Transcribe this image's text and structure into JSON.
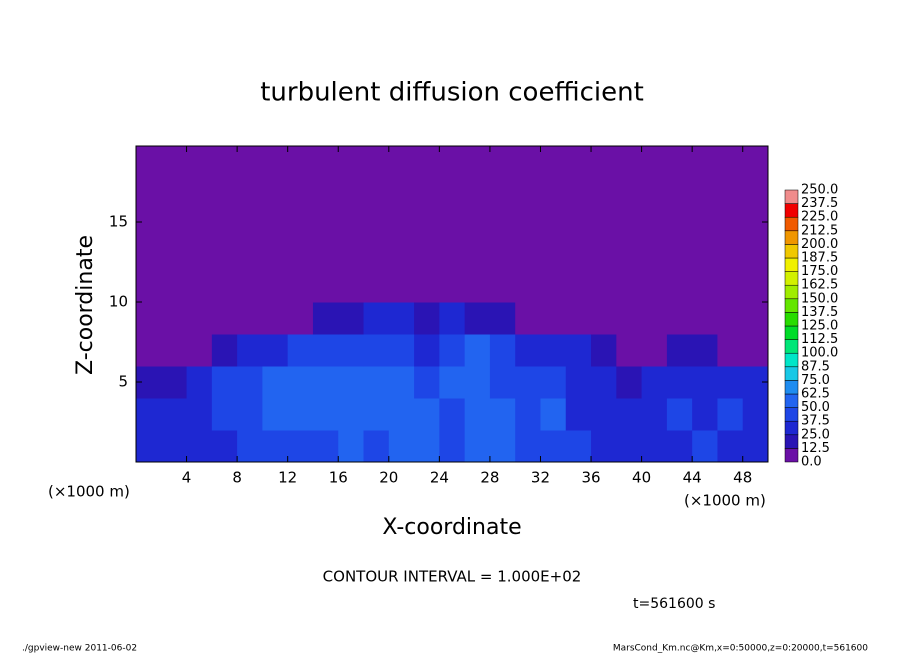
{
  "chart_data": {
    "type": "heatmap",
    "title": "turbulent diffusion coefficient",
    "x_label": "X-coordinate",
    "y_label": "Z-coordinate",
    "x_unit": "(×1000 m)",
    "x": [
      1,
      3,
      5,
      7,
      9,
      11,
      13,
      15,
      17,
      19,
      21,
      23,
      25,
      27,
      29,
      31,
      33,
      35,
      37,
      39,
      41,
      43,
      45,
      47,
      49
    ],
    "y": [
      1,
      3,
      5,
      7,
      9,
      11,
      13,
      15,
      17,
      19
    ],
    "values": [
      [
        35,
        30,
        25,
        30,
        40,
        45,
        40,
        45,
        50,
        45,
        50,
        55,
        45,
        50,
        55,
        40,
        45,
        40,
        35,
        30,
        35,
        30,
        40,
        35,
        30
      ],
      [
        30,
        25,
        30,
        40,
        45,
        50,
        55,
        50,
        60,
        55,
        60,
        50,
        45,
        55,
        50,
        45,
        50,
        35,
        30,
        30,
        35,
        40,
        35,
        40,
        35
      ],
      [
        15,
        20,
        30,
        40,
        45,
        50,
        55,
        60,
        55,
        50,
        55,
        45,
        50,
        60,
        45,
        40,
        45,
        30,
        25,
        20,
        25,
        30,
        35,
        30,
        25
      ],
      [
        0,
        0,
        10,
        20,
        30,
        35,
        40,
        45,
        40,
        45,
        40,
        35,
        45,
        50,
        40,
        35,
        30,
        25,
        15,
        0,
        5,
        15,
        20,
        10,
        0
      ],
      [
        0,
        0,
        0,
        0,
        0,
        5,
        10,
        15,
        20,
        25,
        25,
        20,
        25,
        20,
        15,
        10,
        5,
        0,
        0,
        0,
        0,
        0,
        0,
        0,
        0
      ],
      [
        0,
        0,
        0,
        0,
        0,
        0,
        0,
        0,
        0,
        0,
        0,
        0,
        0,
        0,
        0,
        0,
        0,
        0,
        0,
        0,
        0,
        0,
        0,
        0,
        0
      ],
      [
        0,
        0,
        0,
        0,
        0,
        0,
        0,
        0,
        0,
        0,
        0,
        0,
        0,
        0,
        0,
        0,
        0,
        0,
        0,
        0,
        0,
        0,
        0,
        0,
        0
      ],
      [
        0,
        0,
        0,
        0,
        0,
        0,
        0,
        0,
        0,
        0,
        0,
        0,
        0,
        0,
        0,
        0,
        0,
        0,
        0,
        0,
        0,
        0,
        0,
        0,
        0
      ],
      [
        0,
        0,
        0,
        0,
        0,
        0,
        0,
        0,
        0,
        0,
        0,
        0,
        0,
        0,
        0,
        0,
        0,
        0,
        0,
        0,
        0,
        0,
        0,
        0,
        0
      ],
      [
        0,
        0,
        0,
        0,
        0,
        0,
        0,
        0,
        0,
        0,
        0,
        0,
        0,
        0,
        0,
        0,
        0,
        0,
        0,
        0,
        0,
        0,
        0,
        0,
        0
      ]
    ],
    "xlim": [
      0,
      50
    ],
    "ylim": [
      0,
      19.75
    ],
    "xticks": [
      4,
      8,
      12,
      16,
      20,
      24,
      28,
      32,
      36,
      40,
      44,
      48
    ],
    "yticks": [
      5,
      10,
      15
    ],
    "colorbar": {
      "levels": [
        {
          "value": 0,
          "label": "0.0"
        },
        12.5,
        {
          "value": 25,
          "label": "25.0"
        },
        37.5,
        {
          "value": 50,
          "label": "50.0"
        },
        62.5,
        {
          "value": 75,
          "label": "75.0"
        },
        87.5,
        {
          "value": 100,
          "label": "100.0"
        },
        112.5,
        {
          "value": 125,
          "label": "125.0"
        },
        137.5,
        {
          "value": 150,
          "label": "150.0"
        },
        162.5,
        {
          "value": 175,
          "label": "175.0"
        },
        187.5,
        {
          "value": 200,
          "label": "200.0"
        },
        212.5,
        {
          "value": 225,
          "label": "225.0"
        },
        237.5,
        {
          "value": 250,
          "label": "250.0"
        }
      ],
      "colors": [
        "#6a10a6",
        "#2a14b4",
        "#1e28d2",
        "#1e46e6",
        "#2264f0",
        "#1e8cf0",
        "#18c8e6",
        "#00e6c8",
        "#00e678",
        "#00dc28",
        "#28dc00",
        "#64e600",
        "#a0ec00",
        "#d2f000",
        "#f0f000",
        "#f0c800",
        "#f09600",
        "#f05a00",
        "#f00000",
        "#f08c8c"
      ]
    },
    "contour_interval": "CONTOUR INTERVAL = 1.000E+02",
    "time_label": "t=561600 s",
    "footer_left": "./gpview-new  2011-06-02",
    "footer_right": "MarsCond_Km.nc@Km,x=0:50000,z=0:20000,t=561600"
  }
}
